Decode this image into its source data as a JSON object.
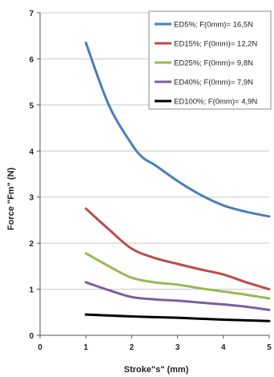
{
  "chart_data": {
    "type": "line",
    "title": "",
    "xlabel": "Stroke\"s\" (mm)",
    "ylabel": "Force \"Fm\" (N)",
    "xlim": [
      0,
      5
    ],
    "ylim": [
      0,
      7
    ],
    "x_ticks": [
      "0",
      "1",
      "2",
      "3",
      "4",
      "5"
    ],
    "y_ticks": [
      "0",
      "1",
      "2",
      "3",
      "4",
      "5",
      "6",
      "7"
    ],
    "grid": "horizontal",
    "legend_position": "top-right",
    "series": [
      {
        "name": "ED5%; F(0mm)= 16,5N",
        "color": "#4a7ebb",
        "x": [
          1,
          1.5,
          2,
          2.25,
          2.5,
          3,
          3.5,
          4,
          4.5,
          5
        ],
        "y": [
          6.35,
          5.0,
          4.15,
          3.85,
          3.7,
          3.35,
          3.05,
          2.82,
          2.68,
          2.58
        ]
      },
      {
        "name": "ED15%; F(0mm)= 12,2N",
        "color": "#be4b48",
        "x": [
          1,
          1.5,
          2,
          2.5,
          3,
          3.5,
          4,
          4.5,
          5
        ],
        "y": [
          2.75,
          2.3,
          1.88,
          1.68,
          1.55,
          1.43,
          1.32,
          1.15,
          1.0
        ]
      },
      {
        "name": "ED25%; F(0mm)= 9,8N",
        "color": "#98b954",
        "x": [
          1,
          1.5,
          2,
          2.5,
          3,
          3.5,
          4,
          4.5,
          5
        ],
        "y": [
          1.78,
          1.5,
          1.25,
          1.15,
          1.1,
          1.02,
          0.95,
          0.88,
          0.8
        ]
      },
      {
        "name": "ED40%; F(0mm)= 7,9N",
        "color": "#7d5fa0",
        "x": [
          1,
          1.5,
          2,
          2.5,
          3,
          3.5,
          4,
          4.5,
          5
        ],
        "y": [
          1.15,
          0.98,
          0.83,
          0.78,
          0.75,
          0.71,
          0.67,
          0.62,
          0.55
        ]
      },
      {
        "name": "ED100%; F(0mm)= 4,9N",
        "color": "#000000",
        "x": [
          1,
          2,
          3,
          4,
          5
        ],
        "y": [
          0.45,
          0.41,
          0.38,
          0.34,
          0.31
        ]
      }
    ]
  }
}
